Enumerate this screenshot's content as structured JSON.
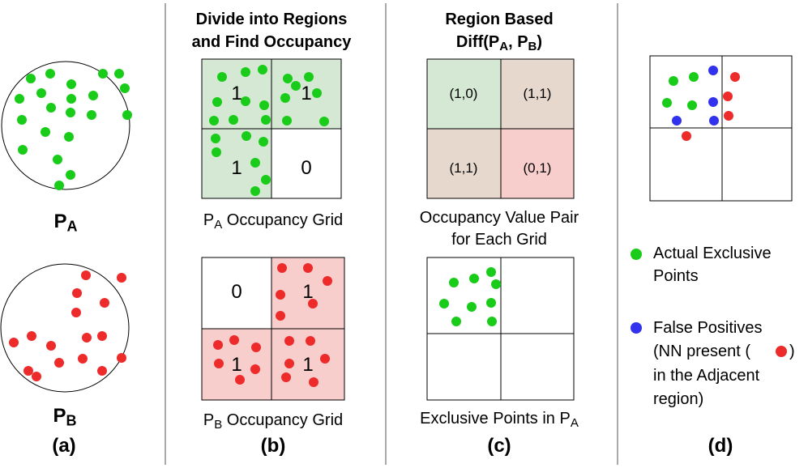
{
  "panel_a": {
    "label_a_main": "P",
    "label_a_sub": "A",
    "label_b_main": "P",
    "label_b_sub": "B",
    "caption": "(a)"
  },
  "panel_b": {
    "title_line1": "Divide into Regions",
    "title_line2": "and Find Occupancy",
    "grid_a_values": [
      "1",
      "1",
      "1",
      "0"
    ],
    "grid_a_label_main": "P",
    "grid_a_label_sub": "A",
    "grid_a_label_rest": " Occupancy Grid",
    "grid_b_values": [
      "0",
      "1",
      "1",
      "1"
    ],
    "grid_b_label_main": "P",
    "grid_b_label_sub": "B",
    "grid_b_label_rest": " Occupancy Grid",
    "caption": "(b)"
  },
  "panel_c": {
    "title_line1": "Region Based",
    "title_line2_pre": "Diff(P",
    "title_line2_sub1": "A",
    "title_line2_mid": ", P",
    "title_line2_sub2": "B",
    "title_line2_post": ")",
    "pairs": [
      "(1,0)",
      "(1,1)",
      "(1,1)",
      "(0,1)"
    ],
    "pairs_label_line1": "Occupancy Value Pair",
    "pairs_label_line2": "for Each Grid",
    "exclusive_label_main": "Exclusive Points in P",
    "exclusive_label_sub": "A",
    "caption": "(c)"
  },
  "panel_d": {
    "legend": {
      "actual_line1": "Actual Exclusive",
      "actual_line2": "Points",
      "false_line1": "False Positives",
      "false_line2_pre": "(NN present (",
      "false_line2_post": ")",
      "false_line3": "in the Adjacent",
      "false_line4": "region)"
    },
    "caption": "(d)"
  },
  "colors": {
    "green": "#19cc19",
    "red": "#ee2b2b",
    "blue": "#3131ee",
    "green_fill": "#d5e8d4",
    "red_fill": "#f8cecc",
    "tan_fill": "#e6d8cd",
    "divider": "#aaaaaa"
  }
}
